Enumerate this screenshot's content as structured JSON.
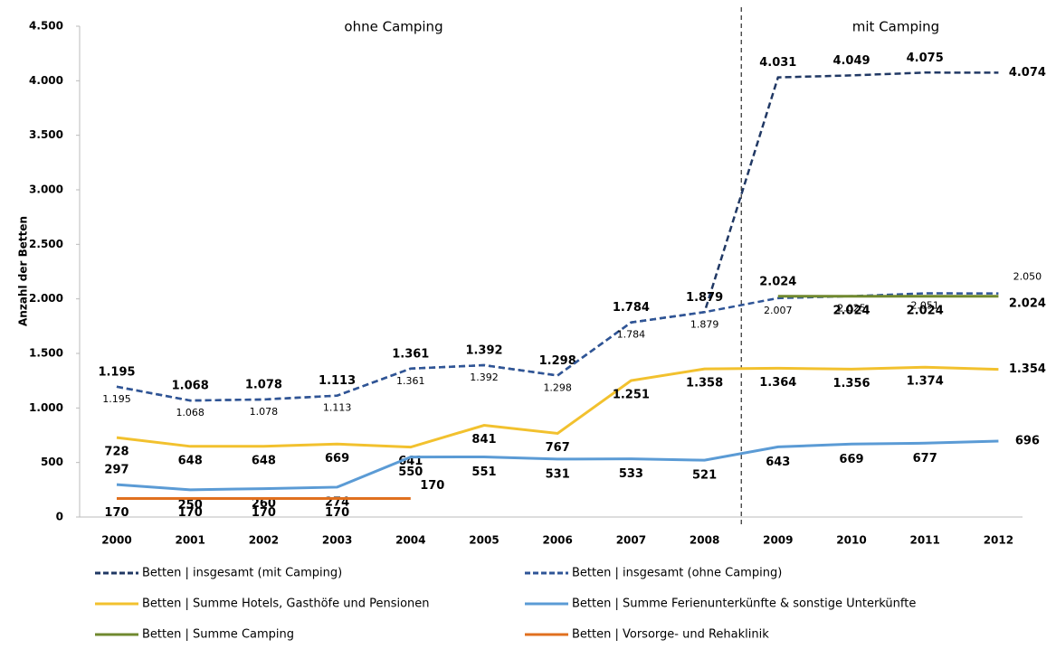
{
  "chart_data": {
    "type": "line",
    "y_label": "Anzahl der Betten",
    "annotations": [
      "ohne Camping",
      "mit Camping"
    ],
    "categories": [
      "2000",
      "2001",
      "2002",
      "2003",
      "2004",
      "2005",
      "2006",
      "2007",
      "2008",
      "2009",
      "2010",
      "2011",
      "2012"
    ],
    "ylim": [
      0,
      4500
    ],
    "yticks": [
      0,
      500,
      {
        "value": 1000,
        "label": "1.000"
      },
      {
        "value": 1500,
        "label": "1.500"
      },
      {
        "value": 2000,
        "label": "2.000"
      },
      {
        "value": 2500,
        "label": "2.500"
      },
      {
        "value": 3000,
        "label": "3.000"
      },
      {
        "value": 3500,
        "label": "3.500"
      },
      {
        "value": 4000,
        "label": "4.000"
      },
      {
        "value": 4500,
        "label": "4.500"
      }
    ],
    "series": [
      {
        "name": "Betten | insgesamt (mit Camping)",
        "color": "#203864",
        "style": "dashed",
        "values": [
          1195,
          1068,
          1078,
          1113,
          1361,
          1392,
          1298,
          1784,
          1879,
          4031,
          4049,
          4075,
          4074
        ],
        "value_labels": [
          "1.195",
          "1.068",
          "1.078",
          "1.113",
          "1.361",
          "1.392",
          "1.298",
          "1.784",
          "1.879",
          "4.031",
          "4.049",
          "4.075",
          "4.074"
        ]
      },
      {
        "name": "Betten | insgesamt (ohne Camping)",
        "color": "#2f5597",
        "style": "dashed",
        "values": [
          1195,
          1068,
          1078,
          1113,
          1361,
          1392,
          1298,
          1784,
          1879,
          2007,
          2025,
          2051,
          2050
        ],
        "value_labels": [
          "1.195",
          "1.068",
          "1.078",
          "1.113",
          "1.361",
          "1.392",
          "1.298",
          "1.784",
          "1.879",
          "2.007",
          "2.025",
          "2.051",
          "2.050"
        ]
      },
      {
        "name": "Betten | Summe Hotels, Gasthöfe und Pensionen",
        "color": "#f2c12e",
        "style": "solid",
        "values": [
          728,
          648,
          648,
          669,
          641,
          841,
          767,
          1251,
          1358,
          1364,
          1356,
          1374,
          1354
        ],
        "value_labels": [
          "728",
          "648",
          "648",
          "669",
          "641",
          "841",
          "767",
          "1.251",
          "1.358",
          "1.364",
          "1.356",
          "1.374",
          "1.354"
        ]
      },
      {
        "name": "Betten | Summe Ferienunterkünfte & sonstige Unterkünfte",
        "color": "#5b9bd5",
        "style": "solid",
        "values": [
          297,
          250,
          260,
          274,
          550,
          551,
          531,
          533,
          521,
          643,
          669,
          677,
          696
        ]
      },
      {
        "name": "Betten | Summe Camping",
        "color": "#70892f",
        "style": "solid",
        "values": [
          null,
          null,
          null,
          null,
          null,
          null,
          null,
          null,
          null,
          2024,
          2024,
          2024,
          2024
        ],
        "value_labels": [
          null,
          null,
          null,
          null,
          null,
          null,
          null,
          null,
          null,
          "2.024",
          "2.024",
          "2.024",
          "2.024"
        ]
      },
      {
        "name": "Betten | Vorsorge- und Rehaklinik",
        "color": "#e0701f",
        "style": "solid",
        "values": [
          170,
          170,
          170,
          170,
          170,
          null,
          null,
          null,
          null,
          null,
          null,
          null,
          null
        ]
      }
    ]
  }
}
